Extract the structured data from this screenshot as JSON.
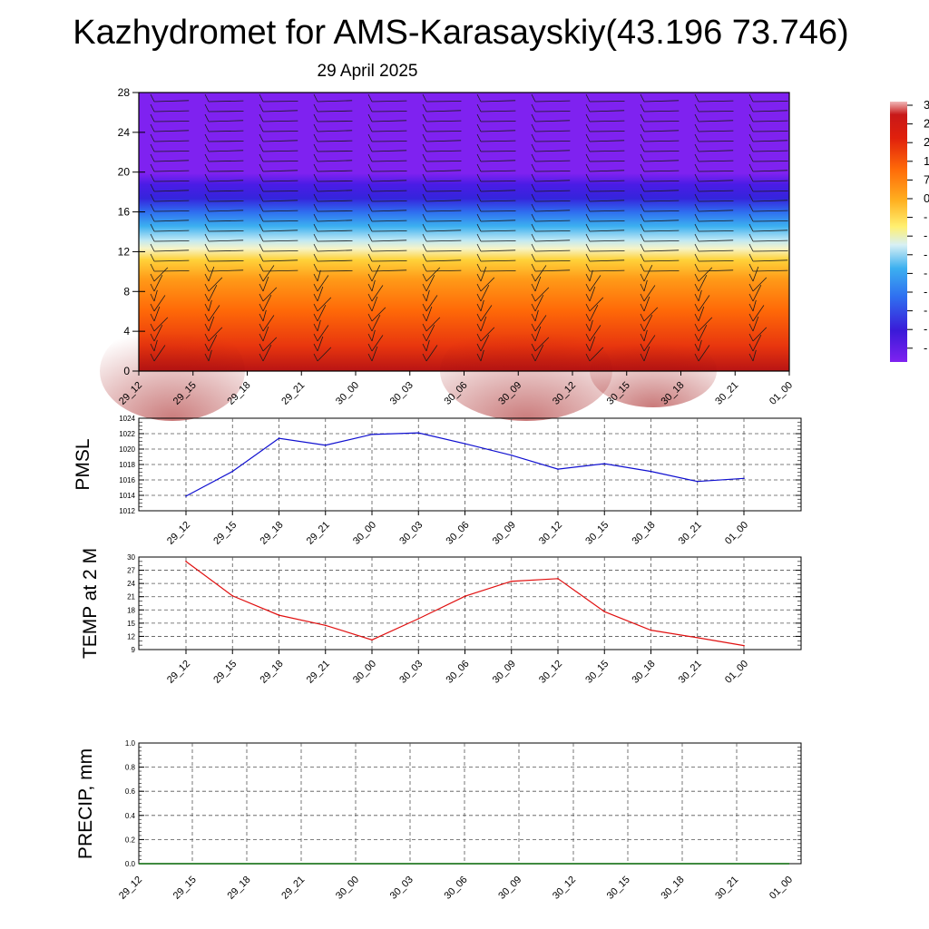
{
  "title": "Kazhydromet for AMS-Karasayskiy(43.196 73.746)",
  "date": "29 April 2025",
  "time_labels": [
    "29_12",
    "29_15",
    "29_18",
    "29_21",
    "30_00",
    "30_03",
    "30_06",
    "30_09",
    "30_12",
    "30_15",
    "30_18",
    "30_21",
    "01_00"
  ],
  "colorbar_labels": [
    "3",
    "2",
    "2",
    "1",
    "7",
    "0",
    "-",
    "-",
    "-",
    "-",
    "-",
    "-",
    "-",
    "-"
  ],
  "chart_data": [
    {
      "type": "heatmap",
      "title": "",
      "xlabel": "",
      "ylabel": "",
      "x": [
        "29_12",
        "29_15",
        "29_18",
        "29_21",
        "30_00",
        "30_03",
        "30_06",
        "30_09",
        "30_12",
        "30_15",
        "30_18",
        "30_21",
        "01_00"
      ],
      "yticks": [
        0,
        4,
        8,
        12,
        16,
        20,
        24,
        28
      ],
      "ylim": [
        0,
        28
      ],
      "colorscale": [
        "#7f22f0",
        "#3a1ad8",
        "#2f5ff0",
        "#3aa8f0",
        "#e6f4f4",
        "#ffec40",
        "#ffb020",
        "#ff7a0a",
        "#f03c0c",
        "#b81414"
      ],
      "bands": [
        {
          "from": 0,
          "to": 4,
          "level": "warmest (red)"
        },
        {
          "from": 4,
          "to": 8,
          "level": "warm (orange-red)"
        },
        {
          "from": 8,
          "to": 12,
          "level": "mild (orange-yellow)"
        },
        {
          "from": 12,
          "to": 14,
          "level": "near zero (pale)"
        },
        {
          "from": 14,
          "to": 18,
          "level": "cold (light to deep blue)"
        },
        {
          "from": 18,
          "to": 20,
          "level": "coldest (blue)"
        },
        {
          "from": 20,
          "to": 28,
          "level": "purple (top of scale)"
        }
      ],
      "wind_barbs": true,
      "grid": false
    },
    {
      "type": "line",
      "title": "",
      "ylabel": "PMSL",
      "xlabel": "",
      "ylim": [
        1012,
        1024
      ],
      "yticks": [
        1012,
        1014,
        1016,
        1018,
        1020,
        1022,
        1024
      ],
      "categories": [
        "29_12",
        "29_15",
        "29_18",
        "29_21",
        "30_00",
        "30_03",
        "30_06",
        "30_09",
        "30_12",
        "30_15",
        "30_18",
        "30_21",
        "01_00"
      ],
      "series": [
        {
          "values": [
            1013.9,
            1017.1,
            1021.4,
            1020.5,
            1021.9,
            1022.1,
            1020.7,
            1019.2,
            1017.4,
            1018.1,
            1017.1,
            1015.8,
            1016.2
          ],
          "color": "#1010d0"
        }
      ],
      "grid": true
    },
    {
      "type": "line",
      "title": "",
      "ylabel": "TEMP at 2 M",
      "xlabel": "",
      "ylim": [
        9,
        30
      ],
      "yticks": [
        9,
        12,
        15,
        18,
        21,
        24,
        27,
        30
      ],
      "categories": [
        "29_12",
        "29_15",
        "29_18",
        "29_21",
        "30_00",
        "30_03",
        "30_06",
        "30_09",
        "30_12",
        "30_15",
        "30_18",
        "30_21",
        "01_00"
      ],
      "series": [
        {
          "values": [
            29.0,
            21.2,
            16.8,
            14.5,
            11.2,
            16.0,
            21.1,
            24.5,
            25.1,
            17.6,
            13.4,
            11.7,
            9.9
          ],
          "color": "#e01010"
        }
      ],
      "grid": true
    },
    {
      "type": "line",
      "title": "",
      "ylabel": "PRECIP, mm",
      "xlabel": "",
      "ylim": [
        0,
        1.0
      ],
      "yticks": [
        "0.0",
        "0.2",
        "0.4",
        "0.6",
        "0.8",
        "1.0"
      ],
      "categories": [
        "29_12",
        "29_15",
        "29_18",
        "29_21",
        "30_00",
        "30_03",
        "30_06",
        "30_09",
        "30_12",
        "30_15",
        "30_18",
        "30_21",
        "01_00"
      ],
      "series": [
        {
          "values": [
            0,
            0,
            0,
            0,
            0,
            0,
            0,
            0,
            0,
            0,
            0,
            0,
            0
          ],
          "color": "#006400"
        }
      ],
      "grid": true
    }
  ]
}
